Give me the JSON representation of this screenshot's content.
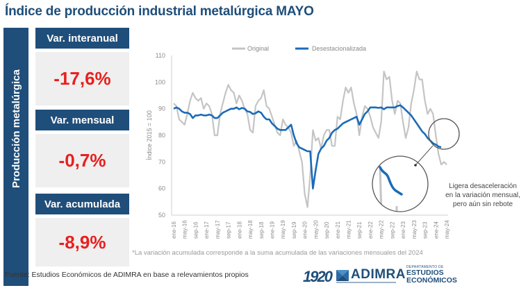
{
  "title": "Índice de producción industrial metalúrgica MAYO",
  "side_label": "Producción metalúrgica",
  "kpis": [
    {
      "label": "Var. interanual",
      "value": "-17,6%"
    },
    {
      "label": "Var. mensual",
      "value": "-0,7%"
    },
    {
      "label": "Var. acumulada",
      "value": "-8,9%"
    }
  ],
  "annotation": [
    "Ligera desaceleración",
    "en la variación mensual,",
    "pero aún sin rebote"
  ],
  "footnote": "*La variación acumulada corresponde a la suma acumulada de las variaciones mensuales del 2024",
  "source": "Fuente: Estudios Económicos de ADIMRA en base a relevamientos propios",
  "logos": {
    "anniversary": "1920",
    "brand": "ADIMRA",
    "dept_line1": "DEPARTAMENTO DE",
    "dept_line2": "ESTUDIOS",
    "dept_line3": "ECONÓMICOS"
  },
  "colors": {
    "brand_blue": "#1f4e7a",
    "kpi_red": "#e8201f",
    "original": "#c4c4c4",
    "desestacionalizada": "#1a6bb8"
  },
  "chart_data": {
    "type": "line",
    "title": "",
    "xlabel": "",
    "ylabel": "Índice 2015 = 100",
    "ylim": [
      50,
      110
    ],
    "yticks": [
      50,
      60,
      70,
      80,
      90,
      100,
      110
    ],
    "grid": false,
    "legend": "top",
    "x_start": "ene-16",
    "x_end": "may-24",
    "xtick_labels": [
      "ene-16",
      "may-16",
      "sep-16",
      "ene-17",
      "may-17",
      "sep-17",
      "ene-18",
      "may-18",
      "sep-18",
      "ene-19",
      "may-19",
      "sep-19",
      "ene-20",
      "may-20",
      "sep-20",
      "ene-21",
      "may-21",
      "sep-21",
      "ene-22",
      "may-22",
      "sep-22",
      "ene-23",
      "may-23",
      "sep-23",
      "ene-24",
      "may-24"
    ],
    "series": [
      {
        "name": "Original",
        "values": [
          92,
          91,
          86,
          85,
          84,
          88,
          93,
          96,
          94,
          93,
          94,
          90,
          92,
          91,
          88,
          80,
          80,
          88,
          92,
          96,
          99,
          97,
          96,
          92,
          95,
          93,
          90,
          88,
          82,
          81,
          91,
          93,
          94,
          97,
          91,
          90,
          87,
          84,
          81,
          80,
          86,
          84,
          83,
          81,
          76,
          78,
          74,
          70,
          58,
          53,
          65,
          82,
          78,
          79,
          75,
          80,
          82,
          82,
          76,
          76,
          87,
          86,
          93,
          98,
          96,
          98,
          92,
          88,
          80,
          87,
          91,
          90,
          87,
          83,
          81,
          79,
          85,
          104,
          101,
          102,
          93,
          88,
          93,
          92,
          85,
          79,
          83,
          92,
          97,
          104,
          101,
          101,
          93,
          88,
          90,
          88,
          80,
          73,
          69,
          70,
          69
        ]
      },
      {
        "name": "Desestacionalizada",
        "values": [
          90,
          90.5,
          90,
          89,
          88.5,
          88.5,
          88,
          86.5,
          87.5,
          87.5,
          87.8,
          87.5,
          87.5,
          87.8,
          87.5,
          86.5,
          86.5,
          87.5,
          88.5,
          89,
          89.5,
          90,
          90,
          90.5,
          89.8,
          90.3,
          90,
          89,
          88.8,
          88,
          88.3,
          89,
          88.5,
          87,
          86,
          86,
          84.5,
          83.5,
          82.5,
          82,
          82,
          82,
          83,
          84,
          80,
          77,
          75.5,
          75,
          74.5,
          74,
          74,
          60,
          67,
          73,
          75,
          76,
          78,
          79,
          81,
          82,
          82.5,
          83.5,
          84.5,
          85,
          85.5,
          86,
          86.5,
          87,
          84,
          86,
          88,
          89,
          90.5,
          90.5,
          90.5,
          90.3,
          90.5,
          89.8,
          90.5,
          90.5,
          90.5,
          90.5,
          91,
          91.3,
          90.5,
          89.5,
          88.5,
          87.5,
          86,
          84.5,
          83,
          81.5,
          80.5,
          79,
          78,
          77,
          76.5,
          75.8,
          75.5
        ]
      }
    ]
  }
}
